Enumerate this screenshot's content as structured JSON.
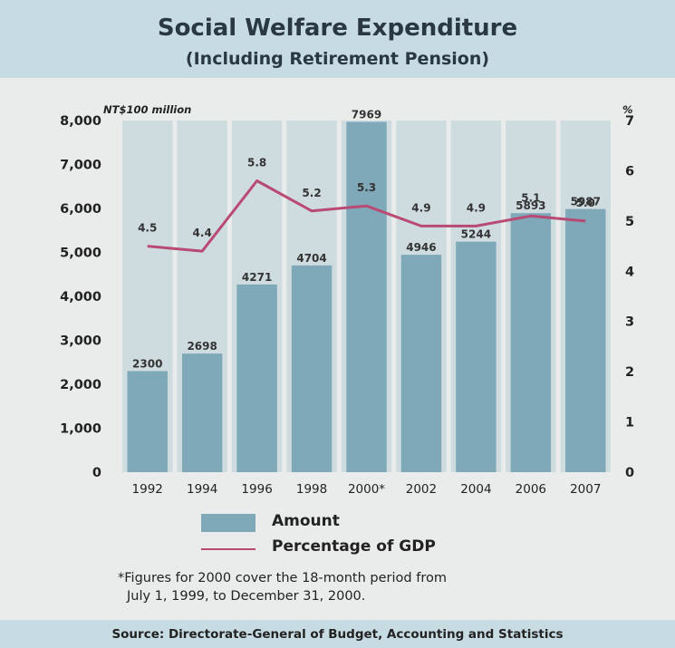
{
  "header": {
    "title": "Social Welfare Expenditure",
    "subtitle": "(Including Retirement Pension)"
  },
  "chart_data": {
    "type": "bar",
    "title": "Social Welfare Expenditure",
    "subtitle": "(Including Retirement Pension)",
    "categories": [
      "1992",
      "1994",
      "1996",
      "1998",
      "2000*",
      "2002",
      "2004",
      "2006",
      "2007"
    ],
    "series": [
      {
        "name": "Amount",
        "type": "bar",
        "axis": "left",
        "values": [
          2300,
          2698,
          4271,
          4704,
          7969,
          4946,
          5244,
          5893,
          5987
        ],
        "labels": [
          "2300",
          "2698",
          "4271",
          "4704",
          "7969",
          "4946",
          "5244",
          "5893",
          "5987"
        ]
      },
      {
        "name": "Percentage of GDP",
        "type": "line",
        "axis": "right",
        "values": [
          4.5,
          4.4,
          5.8,
          5.2,
          5.3,
          4.9,
          4.9,
          5.1,
          5.0
        ],
        "labels": [
          "4.5",
          "4.4",
          "5.8",
          "5.2",
          "5.3",
          "4.9",
          "4.9",
          "5.1",
          "5.0"
        ]
      }
    ],
    "ylabel_left": "NT$100 million",
    "ylabel_right": "%",
    "ylim_left": [
      0,
      8000
    ],
    "ylim_right": [
      0,
      7
    ],
    "left_ticks": [
      "0",
      "1,000",
      "2,000",
      "3,000",
      "4,000",
      "5,000",
      "6,000",
      "7,000",
      "8,000"
    ],
    "right_ticks": [
      "0",
      "1",
      "2",
      "3",
      "4",
      "5",
      "6",
      "7"
    ],
    "legend_position": "bottom",
    "grid": false,
    "colors": {
      "bar": "#7fa9b9",
      "line": "#b84a73",
      "column_band": "#cfdcdf"
    }
  },
  "legend": {
    "amount": "Amount",
    "pct_gdp": "Percentage of GDP"
  },
  "footnote": {
    "line1": "*Figures for 2000 cover the 18-month period from",
    "line2": "July 1, 1999, to December 31, 2000."
  },
  "source": "Source: Directorate-General of Budget, Accounting and Statistics"
}
